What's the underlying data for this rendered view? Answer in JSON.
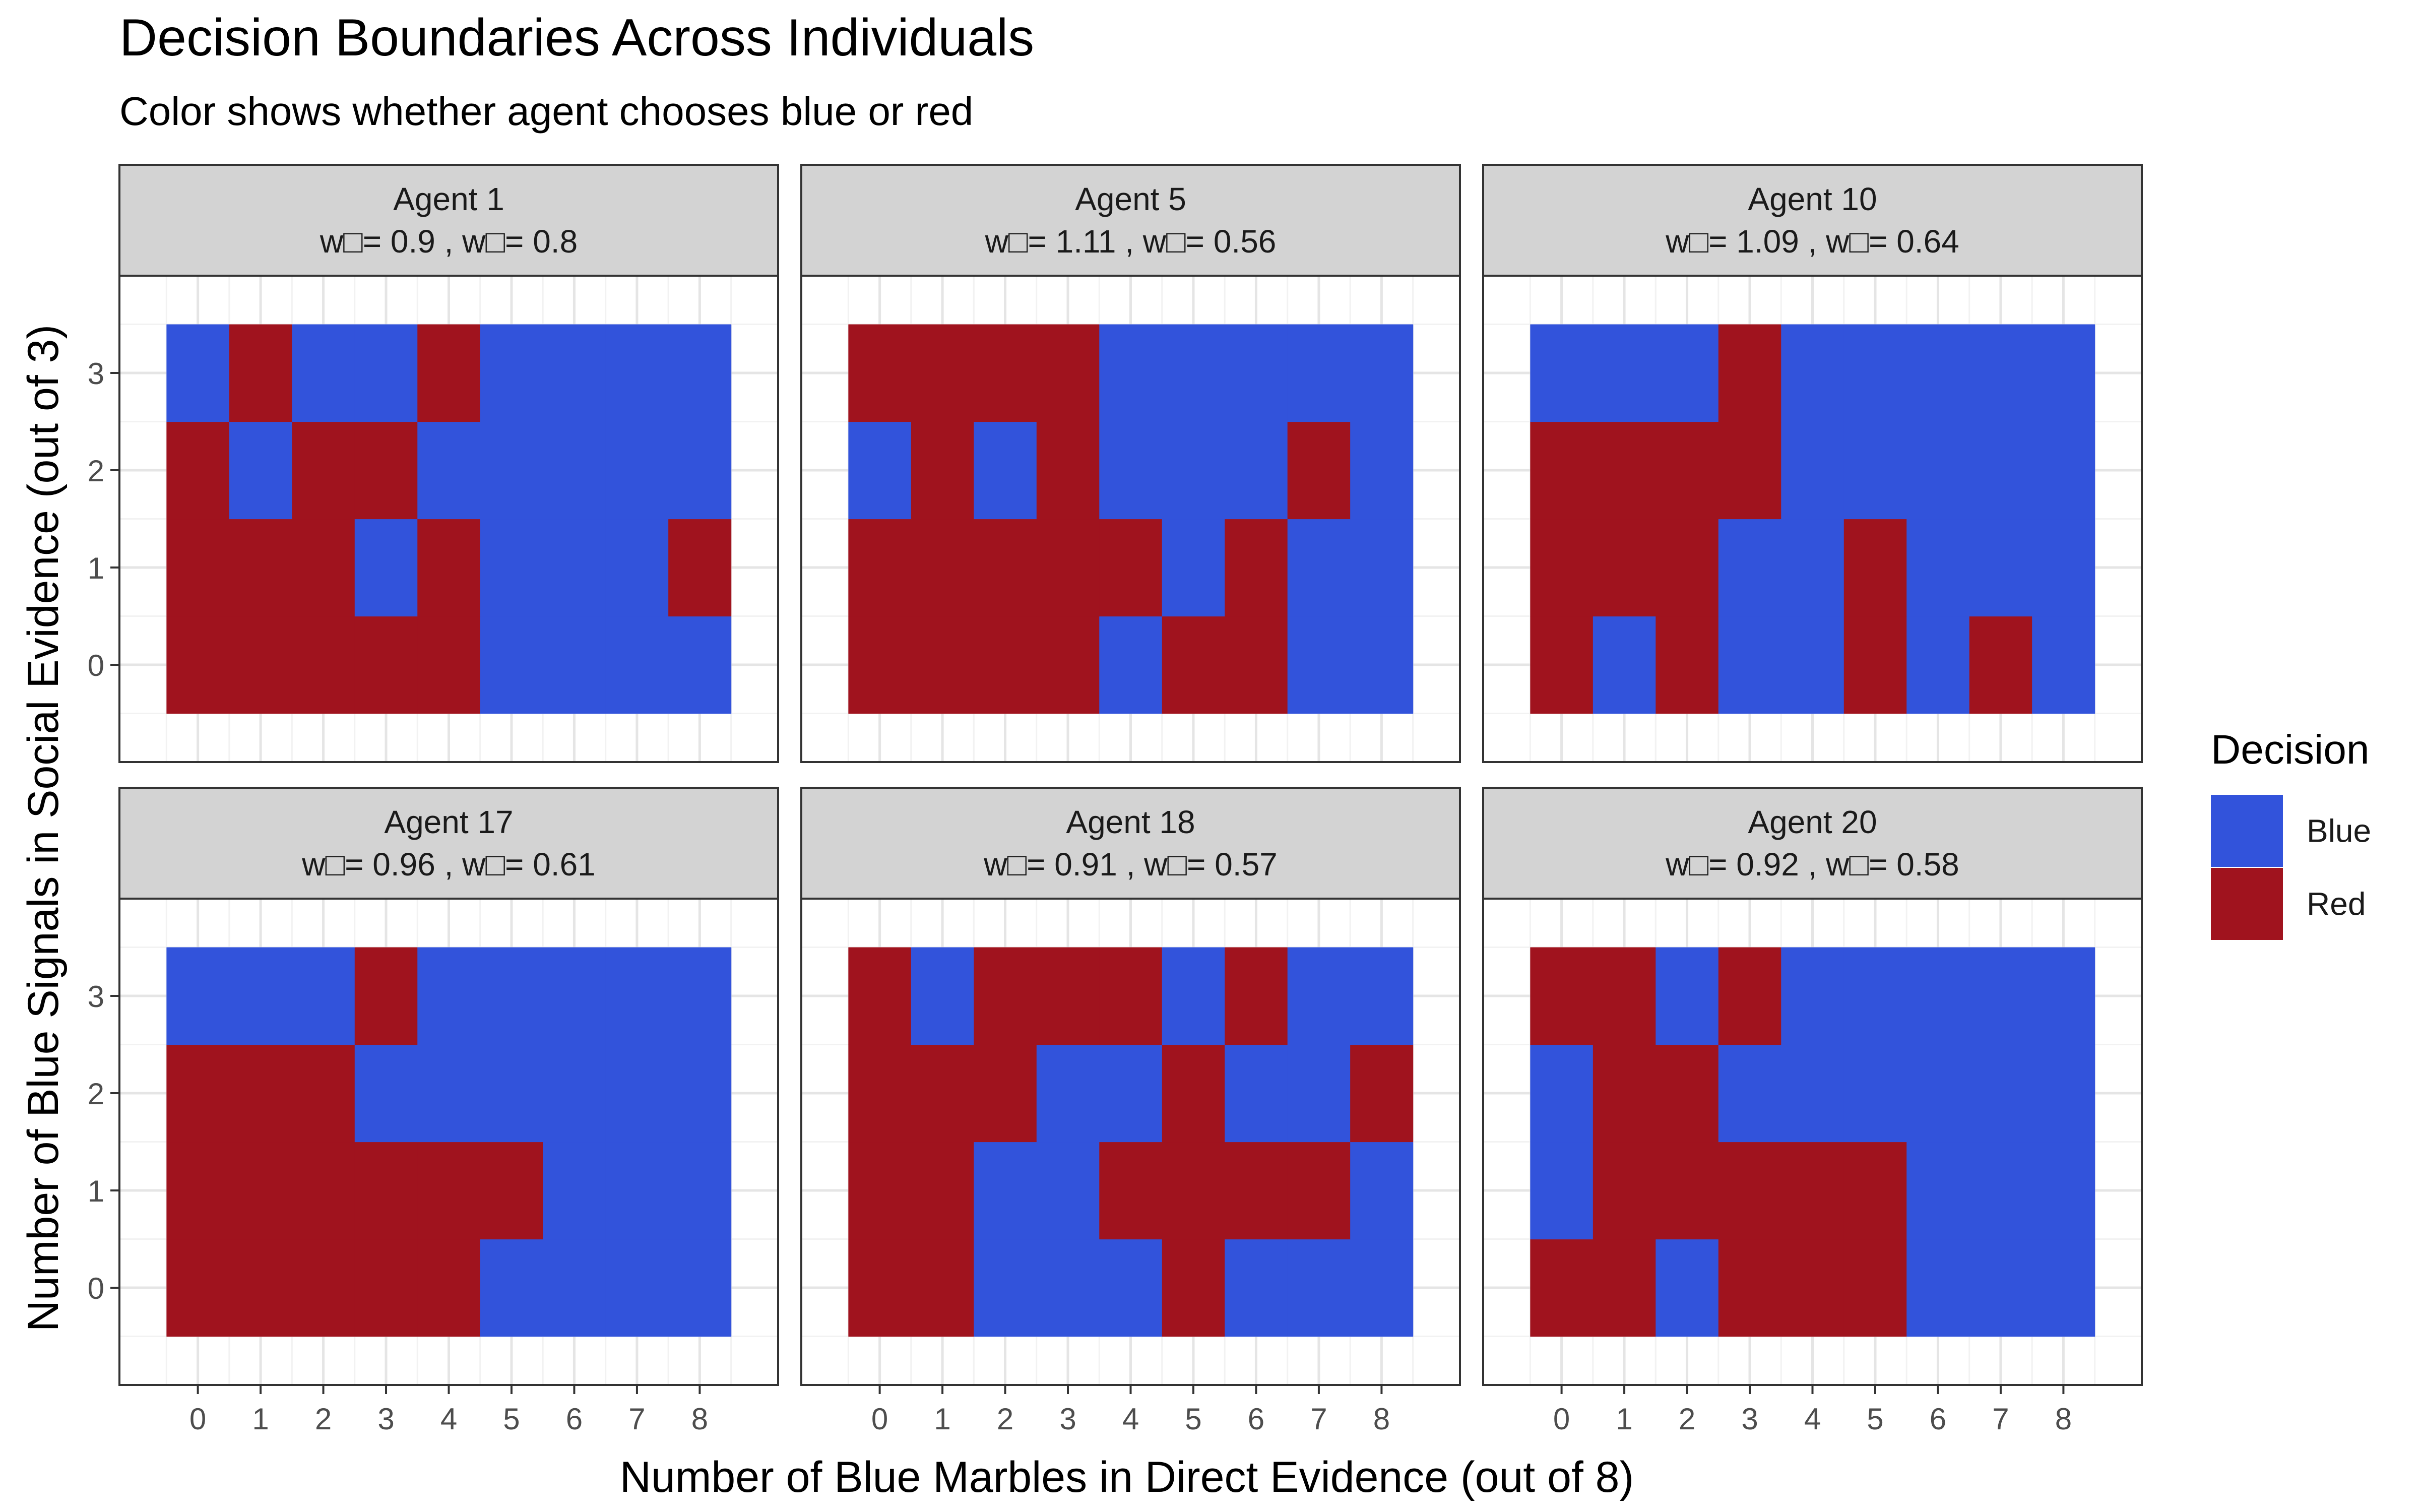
{
  "chart_data": {
    "type": "heatmap",
    "title": "Decision Boundaries Across Individuals",
    "subtitle": "Color shows whether agent chooses blue or red",
    "xlabel": "Number of Blue Marbles in Direct Evidence (out of 8)",
    "ylabel": "Number of Blue Signals in Social Evidence (out of 3)",
    "x": [
      0,
      1,
      2,
      3,
      4,
      5,
      6,
      7,
      8
    ],
    "y": [
      0,
      1,
      2,
      3
    ],
    "x_ticks": [
      "0",
      "1",
      "2",
      "3",
      "4",
      "5",
      "6",
      "7",
      "8"
    ],
    "y_ticks": [
      "0",
      "1",
      "2",
      "3"
    ],
    "grid": true,
    "legend": {
      "title": "Decision",
      "position": "right",
      "entries": [
        {
          "label": "Blue",
          "code": "B",
          "color": "#3253DB"
        },
        {
          "label": "Red",
          "code": "R",
          "color": "#A0131E"
        }
      ]
    },
    "panels": [
      {
        "title": "Agent 1",
        "weights": "w□= 0.9 , w□= 0.8",
        "rows": {
          "3": [
            "B",
            "R",
            "B",
            "B",
            "R",
            "B",
            "B",
            "B",
            "B"
          ],
          "2": [
            "R",
            "B",
            "R",
            "R",
            "B",
            "B",
            "B",
            "B",
            "B"
          ],
          "1": [
            "R",
            "R",
            "R",
            "B",
            "R",
            "B",
            "B",
            "B",
            "R"
          ],
          "0": [
            "R",
            "R",
            "R",
            "R",
            "R",
            "B",
            "B",
            "B",
            "B"
          ]
        }
      },
      {
        "title": "Agent 5",
        "weights": "w□= 1.11 , w□= 0.56",
        "rows": {
          "3": [
            "R",
            "R",
            "R",
            "R",
            "B",
            "B",
            "B",
            "B",
            "B"
          ],
          "2": [
            "B",
            "R",
            "B",
            "R",
            "B",
            "B",
            "B",
            "R",
            "B"
          ],
          "1": [
            "R",
            "R",
            "R",
            "R",
            "R",
            "B",
            "R",
            "B",
            "B"
          ],
          "0": [
            "R",
            "R",
            "R",
            "R",
            "B",
            "R",
            "R",
            "B",
            "B"
          ]
        }
      },
      {
        "title": "Agent 10",
        "weights": "w□= 1.09 , w□= 0.64",
        "rows": {
          "3": [
            "B",
            "B",
            "B",
            "R",
            "B",
            "B",
            "B",
            "B",
            "B"
          ],
          "2": [
            "R",
            "R",
            "R",
            "R",
            "B",
            "B",
            "B",
            "B",
            "B"
          ],
          "1": [
            "R",
            "R",
            "R",
            "B",
            "B",
            "R",
            "B",
            "B",
            "B"
          ],
          "0": [
            "R",
            "B",
            "R",
            "B",
            "B",
            "R",
            "B",
            "R",
            "B"
          ]
        }
      },
      {
        "title": "Agent 17",
        "weights": "w□= 0.96 , w□= 0.61",
        "rows": {
          "3": [
            "B",
            "B",
            "B",
            "R",
            "B",
            "B",
            "B",
            "B",
            "B"
          ],
          "2": [
            "R",
            "R",
            "R",
            "B",
            "B",
            "B",
            "B",
            "B",
            "B"
          ],
          "1": [
            "R",
            "R",
            "R",
            "R",
            "R",
            "R",
            "B",
            "B",
            "B"
          ],
          "0": [
            "R",
            "R",
            "R",
            "R",
            "R",
            "B",
            "B",
            "B",
            "B"
          ]
        }
      },
      {
        "title": "Agent 18",
        "weights": "w□= 0.91 , w□= 0.57",
        "rows": {
          "3": [
            "R",
            "B",
            "R",
            "R",
            "R",
            "B",
            "R",
            "B",
            "B"
          ],
          "2": [
            "R",
            "R",
            "R",
            "B",
            "B",
            "R",
            "B",
            "B",
            "R"
          ],
          "1": [
            "R",
            "R",
            "B",
            "B",
            "R",
            "R",
            "R",
            "R",
            "B"
          ],
          "0": [
            "R",
            "R",
            "B",
            "B",
            "B",
            "R",
            "B",
            "B",
            "B"
          ]
        }
      },
      {
        "title": "Agent 20",
        "weights": "w□= 0.92 , w□= 0.58",
        "rows": {
          "3": [
            "R",
            "R",
            "B",
            "R",
            "B",
            "B",
            "B",
            "B",
            "B"
          ],
          "2": [
            "B",
            "R",
            "R",
            "B",
            "B",
            "B",
            "B",
            "B",
            "B"
          ],
          "1": [
            "B",
            "R",
            "R",
            "R",
            "R",
            "R",
            "B",
            "B",
            "B"
          ],
          "0": [
            "R",
            "R",
            "B",
            "R",
            "R",
            "R",
            "B",
            "B",
            "B"
          ]
        }
      }
    ]
  }
}
